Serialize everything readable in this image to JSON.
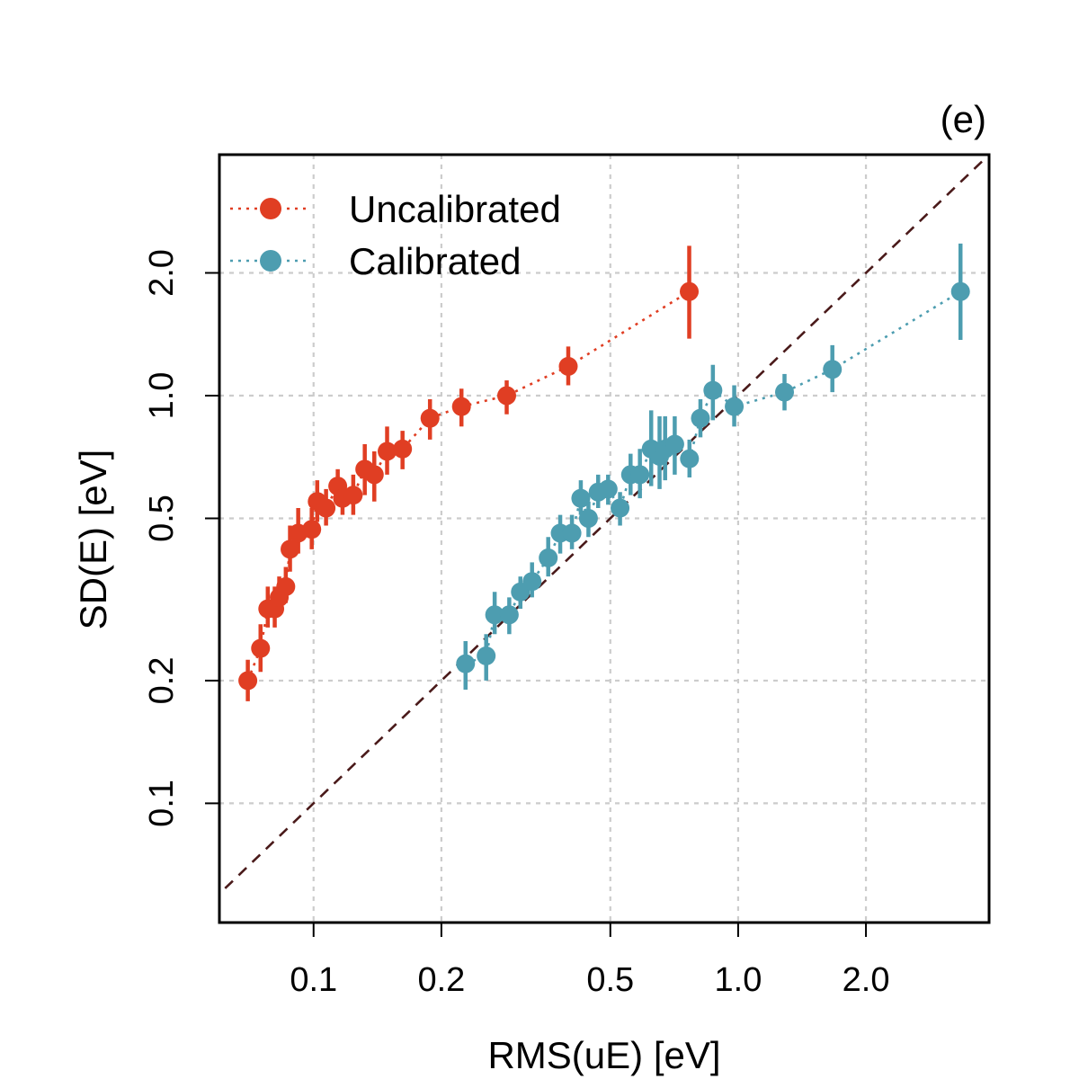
{
  "chart_data": {
    "type": "scatter",
    "panel_label": "(e)",
    "xlabel": "RMS(uE) [eV]",
    "ylabel": "SD(E) [eV]",
    "x_scale": "log",
    "y_scale": "log",
    "xlim": [
      0.06,
      3.9
    ],
    "ylim": [
      0.051,
      3.9
    ],
    "grid": true,
    "legend_position": "top-left",
    "x_ticks": [
      {
        "value": 0.1,
        "label": "0.1"
      },
      {
        "value": 0.2,
        "label": "0.2"
      },
      {
        "value": 0.5,
        "label": "0.5"
      },
      {
        "value": 1.0,
        "label": "1.0"
      },
      {
        "value": 2.0,
        "label": "2.0"
      }
    ],
    "y_ticks": [
      {
        "value": 0.1,
        "label": "0.1"
      },
      {
        "value": 0.2,
        "label": "0.2"
      },
      {
        "value": 0.5,
        "label": "0.5"
      },
      {
        "value": 1.0,
        "label": "1.0"
      },
      {
        "value": 2.0,
        "label": "2.0"
      }
    ],
    "reference_line": {
      "type": "identity",
      "color": "#4a1a1a",
      "style": "dashed"
    },
    "series": [
      {
        "name": "Uncalibrated",
        "color": "#e03e23",
        "points": [
          {
            "x": 0.07,
            "y": 0.2,
            "lo": 0.178,
            "hi": 0.225
          },
          {
            "x": 0.075,
            "y": 0.24,
            "lo": 0.21,
            "hi": 0.275
          },
          {
            "x": 0.078,
            "y": 0.3,
            "lo": 0.27,
            "hi": 0.34
          },
          {
            "x": 0.081,
            "y": 0.3,
            "lo": 0.27,
            "hi": 0.34
          },
          {
            "x": 0.083,
            "y": 0.32,
            "lo": 0.29,
            "hi": 0.36
          },
          {
            "x": 0.086,
            "y": 0.34,
            "lo": 0.31,
            "hi": 0.38
          },
          {
            "x": 0.088,
            "y": 0.42,
            "lo": 0.37,
            "hi": 0.48
          },
          {
            "x": 0.092,
            "y": 0.46,
            "lo": 0.41,
            "hi": 0.53
          },
          {
            "x": 0.099,
            "y": 0.47,
            "lo": 0.42,
            "hi": 0.53
          },
          {
            "x": 0.102,
            "y": 0.55,
            "lo": 0.49,
            "hi": 0.62
          },
          {
            "x": 0.107,
            "y": 0.53,
            "lo": 0.48,
            "hi": 0.59
          },
          {
            "x": 0.114,
            "y": 0.6,
            "lo": 0.54,
            "hi": 0.66
          },
          {
            "x": 0.117,
            "y": 0.56,
            "lo": 0.51,
            "hi": 0.62
          },
          {
            "x": 0.124,
            "y": 0.57,
            "lo": 0.51,
            "hi": 0.64
          },
          {
            "x": 0.132,
            "y": 0.66,
            "lo": 0.57,
            "hi": 0.76
          },
          {
            "x": 0.139,
            "y": 0.64,
            "lo": 0.55,
            "hi": 0.73
          },
          {
            "x": 0.149,
            "y": 0.73,
            "lo": 0.64,
            "hi": 0.84
          },
          {
            "x": 0.162,
            "y": 0.74,
            "lo": 0.66,
            "hi": 0.82
          },
          {
            "x": 0.188,
            "y": 0.88,
            "lo": 0.78,
            "hi": 0.98
          },
          {
            "x": 0.223,
            "y": 0.94,
            "lo": 0.84,
            "hi": 1.04
          },
          {
            "x": 0.285,
            "y": 1.0,
            "lo": 0.9,
            "hi": 1.09
          },
          {
            "x": 0.398,
            "y": 1.18,
            "lo": 1.06,
            "hi": 1.32
          },
          {
            "x": 0.767,
            "y": 1.8,
            "lo": 1.38,
            "hi": 2.33
          }
        ]
      },
      {
        "name": "Calibrated",
        "color": "#4d9db0",
        "points": [
          {
            "x": 0.228,
            "y": 0.22,
            "lo": 0.19,
            "hi": 0.25
          },
          {
            "x": 0.255,
            "y": 0.23,
            "lo": 0.2,
            "hi": 0.26
          },
          {
            "x": 0.267,
            "y": 0.29,
            "lo": 0.26,
            "hi": 0.33
          },
          {
            "x": 0.289,
            "y": 0.29,
            "lo": 0.26,
            "hi": 0.32
          },
          {
            "x": 0.307,
            "y": 0.33,
            "lo": 0.3,
            "hi": 0.36
          },
          {
            "x": 0.327,
            "y": 0.35,
            "lo": 0.32,
            "hi": 0.39
          },
          {
            "x": 0.357,
            "y": 0.4,
            "lo": 0.36,
            "hi": 0.45
          },
          {
            "x": 0.381,
            "y": 0.46,
            "lo": 0.41,
            "hi": 0.51
          },
          {
            "x": 0.406,
            "y": 0.46,
            "lo": 0.42,
            "hi": 0.51
          },
          {
            "x": 0.426,
            "y": 0.56,
            "lo": 0.51,
            "hi": 0.62
          },
          {
            "x": 0.444,
            "y": 0.5,
            "lo": 0.45,
            "hi": 0.55
          },
          {
            "x": 0.468,
            "y": 0.58,
            "lo": 0.53,
            "hi": 0.64
          },
          {
            "x": 0.494,
            "y": 0.59,
            "lo": 0.54,
            "hi": 0.64
          },
          {
            "x": 0.527,
            "y": 0.53,
            "lo": 0.48,
            "hi": 0.58
          },
          {
            "x": 0.558,
            "y": 0.64,
            "lo": 0.57,
            "hi": 0.72
          },
          {
            "x": 0.587,
            "y": 0.64,
            "lo": 0.56,
            "hi": 0.74
          },
          {
            "x": 0.624,
            "y": 0.74,
            "lo": 0.6,
            "hi": 0.92
          },
          {
            "x": 0.653,
            "y": 0.71,
            "lo": 0.59,
            "hi": 0.89
          },
          {
            "x": 0.673,
            "y": 0.74,
            "lo": 0.62,
            "hi": 0.89
          },
          {
            "x": 0.709,
            "y": 0.76,
            "lo": 0.64,
            "hi": 0.89
          },
          {
            "x": 0.768,
            "y": 0.7,
            "lo": 0.63,
            "hi": 0.78
          },
          {
            "x": 0.815,
            "y": 0.88,
            "lo": 0.79,
            "hi": 0.98
          },
          {
            "x": 0.872,
            "y": 1.03,
            "lo": 0.87,
            "hi": 1.19
          },
          {
            "x": 0.979,
            "y": 0.94,
            "lo": 0.84,
            "hi": 1.06
          },
          {
            "x": 1.286,
            "y": 1.02,
            "lo": 0.92,
            "hi": 1.13
          },
          {
            "x": 1.667,
            "y": 1.16,
            "lo": 1.02,
            "hi": 1.33
          },
          {
            "x": 3.34,
            "y": 1.8,
            "lo": 1.37,
            "hi": 2.36
          }
        ]
      }
    ]
  }
}
